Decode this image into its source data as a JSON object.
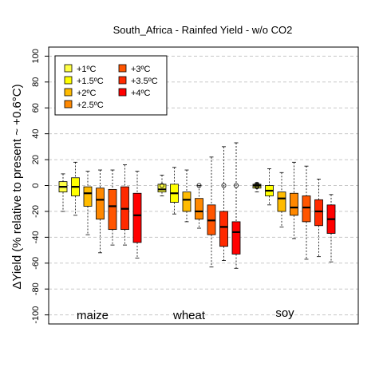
{
  "chart_data": {
    "type": "box",
    "title": "South_Africa - Rainfed Yield - w/o CO2",
    "ylabel": "ΔYield (% relative to present ~ +0.6°C)",
    "xlabel": "",
    "ylim": [
      -107,
      107
    ],
    "yticks": [
      -100,
      -80,
      -60,
      -40,
      -20,
      0,
      20,
      40,
      60,
      80,
      100
    ],
    "grid": "horizontal-dashed",
    "legend_position": "top-left",
    "legend_entries": [
      {
        "label": "+1ºC",
        "color": "#ffff44"
      },
      {
        "label": "+1.5ºC",
        "color": "#ffff00"
      },
      {
        "label": "+2ºC",
        "color": "#ffbb00"
      },
      {
        "label": "+2.5ºC",
        "color": "#ff8800"
      },
      {
        "label": "+3ºC",
        "color": "#ff5500"
      },
      {
        "label": "+3.5ºC",
        "color": "#ff2a00"
      },
      {
        "label": "+4ºC",
        "color": "#ff0000"
      }
    ],
    "groups": [
      {
        "name": "maize",
        "boxes": [
          {
            "level": 0,
            "whisker_low": -20,
            "q1": -5,
            "median": -1,
            "q3": 3,
            "whisker_high": 9,
            "outliers": []
          },
          {
            "level": 1,
            "whisker_low": -23,
            "q1": -8,
            "median": -1,
            "q3": 6,
            "whisker_high": 18,
            "outliers": []
          },
          {
            "level": 2,
            "whisker_low": -38,
            "q1": -16,
            "median": -6,
            "q3": -1,
            "whisker_high": 11,
            "outliers": []
          },
          {
            "level": 3,
            "whisker_low": -52,
            "q1": -26,
            "median": -11,
            "q3": -2,
            "whisker_high": 12,
            "outliers": []
          },
          {
            "level": 4,
            "whisker_low": -46,
            "q1": -34,
            "median": -16,
            "q3": -3,
            "whisker_high": 12,
            "outliers": []
          },
          {
            "level": 5,
            "whisker_low": -46,
            "q1": -34,
            "median": -18,
            "q3": -1,
            "whisker_high": 16,
            "outliers": []
          },
          {
            "level": 6,
            "whisker_low": -56,
            "q1": -44,
            "median": -23,
            "q3": -6,
            "whisker_high": 11,
            "outliers": []
          }
        ]
      },
      {
        "name": "wheat",
        "boxes": [
          {
            "level": 0,
            "whisker_low": -8,
            "q1": -5,
            "median": -3,
            "q3": 1,
            "whisker_high": 8,
            "outliers": [
              0
            ]
          },
          {
            "level": 1,
            "whisker_low": -22,
            "q1": -13,
            "median": -6,
            "q3": 1,
            "whisker_high": 14,
            "outliers": []
          },
          {
            "level": 2,
            "whisker_low": -28,
            "q1": -20,
            "median": -11,
            "q3": -5,
            "whisker_high": 12,
            "outliers": []
          },
          {
            "level": 3,
            "whisker_low": -33,
            "q1": -26,
            "median": -20,
            "q3": -10,
            "whisker_high": 0,
            "outliers": [
              0
            ]
          },
          {
            "level": 4,
            "whisker_low": -63,
            "q1": -38,
            "median": -27,
            "q3": -15,
            "whisker_high": 22,
            "outliers": []
          },
          {
            "level": 5,
            "whisker_low": -58,
            "q1": -47,
            "median": -32,
            "q3": -20,
            "whisker_high": 30,
            "outliers": [
              0
            ]
          },
          {
            "level": 6,
            "whisker_low": -64,
            "q1": -53,
            "median": -36,
            "q3": -28,
            "whisker_high": 33,
            "outliers": [
              0
            ]
          }
        ]
      },
      {
        "name": "soy",
        "boxes": [
          {
            "level": 0,
            "whisker_low": -5,
            "q1": -2,
            "median": 0,
            "q3": 1,
            "whisker_high": 2,
            "outliers": [
              0,
              -1,
              1
            ]
          },
          {
            "level": 1,
            "whisker_low": -15,
            "q1": -8,
            "median": -4,
            "q3": 0,
            "whisker_high": 13,
            "outliers": []
          },
          {
            "level": 2,
            "whisker_low": -32,
            "q1": -20,
            "median": -10,
            "q3": -5,
            "whisker_high": 10,
            "outliers": []
          },
          {
            "level": 3,
            "whisker_low": -41,
            "q1": -23,
            "median": -17,
            "q3": -6,
            "whisker_high": 18,
            "outliers": []
          },
          {
            "level": 4,
            "whisker_low": -57,
            "q1": -28,
            "median": -17,
            "q3": -8,
            "whisker_high": 15,
            "outliers": []
          },
          {
            "level": 5,
            "whisker_low": -55,
            "q1": -31,
            "median": -20,
            "q3": -11,
            "whisker_high": 5,
            "outliers": []
          },
          {
            "level": 6,
            "whisker_low": -59,
            "q1": -37,
            "median": -26,
            "q3": -15,
            "whisker_high": -7,
            "outliers": []
          }
        ]
      }
    ]
  }
}
